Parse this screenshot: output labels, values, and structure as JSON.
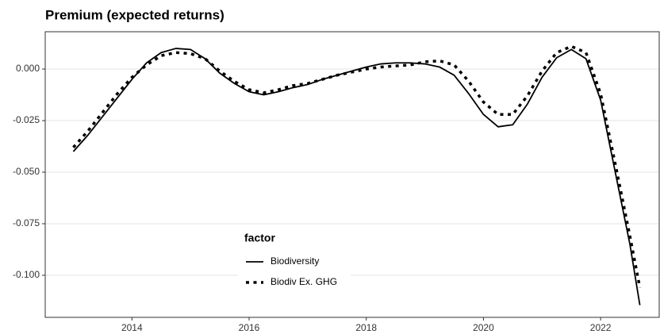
{
  "chart_data": {
    "type": "line",
    "title": "Premium (expected returns)",
    "legend_title": "factor",
    "x": [
      2013,
      2013.25,
      2013.5,
      2013.75,
      2014,
      2014.25,
      2014.5,
      2014.75,
      2015,
      2015.25,
      2015.5,
      2015.75,
      2016,
      2016.25,
      2016.5,
      2016.75,
      2017,
      2017.25,
      2017.5,
      2017.75,
      2018,
      2018.25,
      2018.5,
      2018.75,
      2019,
      2019.25,
      2019.5,
      2019.75,
      2020,
      2020.25,
      2020.5,
      2020.75,
      2021,
      2021.25,
      2021.5,
      2021.75,
      2022,
      2022.25,
      2022.5,
      2022.67
    ],
    "series": [
      {
        "name": "Biodiversity",
        "color": "#000000",
        "dash": "solid",
        "values": [
          -0.04,
          -0.032,
          -0.023,
          -0.014,
          -0.005,
          0.003,
          0.008,
          0.01,
          0.0095,
          0.005,
          -0.002,
          -0.007,
          -0.011,
          -0.0125,
          -0.011,
          -0.009,
          -0.0075,
          -0.005,
          -0.003,
          -0.001,
          0.001,
          0.0025,
          0.003,
          0.003,
          0.0025,
          0.001,
          -0.003,
          -0.012,
          -0.022,
          -0.028,
          -0.027,
          -0.017,
          -0.004,
          0.0055,
          0.0095,
          0.005,
          -0.015,
          -0.05,
          -0.085,
          -0.1145
        ]
      },
      {
        "name": "Biodiv Ex. GHG",
        "color": "#000000",
        "dash": "dotted",
        "values": [
          -0.038,
          -0.03,
          -0.021,
          -0.012,
          -0.004,
          0.002,
          0.0065,
          0.008,
          0.0075,
          0.005,
          -0.001,
          -0.006,
          -0.01,
          -0.0115,
          -0.01,
          -0.008,
          -0.007,
          -0.005,
          -0.003,
          -0.0015,
          0.0,
          0.001,
          0.0015,
          0.002,
          0.0035,
          0.004,
          0.002,
          -0.006,
          -0.016,
          -0.022,
          -0.022,
          -0.013,
          -0.001,
          0.008,
          0.011,
          0.008,
          -0.012,
          -0.046,
          -0.081,
          -0.106
        ]
      }
    ],
    "xlim": [
      2012.52,
      2023.0
    ],
    "ylim": [
      -0.1204,
      0.0181
    ],
    "xticks": [
      2014,
      2016,
      2018,
      2020,
      2022
    ],
    "yticks": [
      {
        "value": 0,
        "label": "0.000"
      },
      {
        "value": -0.025,
        "label": "-0.025"
      },
      {
        "value": -0.05,
        "label": "-0.050"
      },
      {
        "value": -0.075,
        "label": "-0.075"
      },
      {
        "value": -0.1,
        "label": "-0.100"
      }
    ],
    "grid": true
  }
}
